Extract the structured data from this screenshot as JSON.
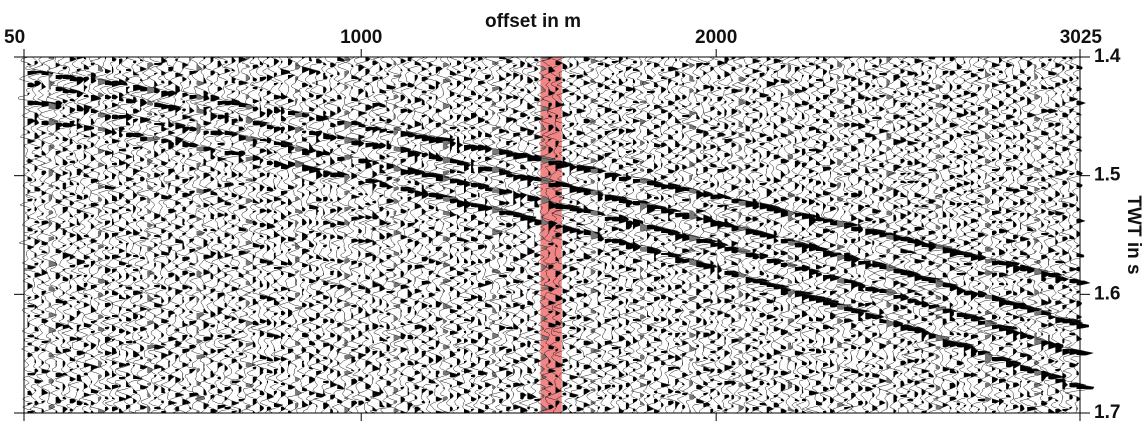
{
  "chart_data": {
    "type": "seismic-wiggle",
    "x_label": "offset in m",
    "y_label": "TWT in s",
    "xlim": [
      50,
      3025
    ],
    "xticks": [
      50,
      1000,
      2000,
      3025
    ],
    "ylim": [
      1.4,
      1.7
    ],
    "yticks": [
      1.4,
      1.5,
      1.6,
      1.7
    ],
    "y_inverted": true,
    "highlight": {
      "xlim": [
        1505,
        1565
      ],
      "color": "#f07070"
    }
  }
}
